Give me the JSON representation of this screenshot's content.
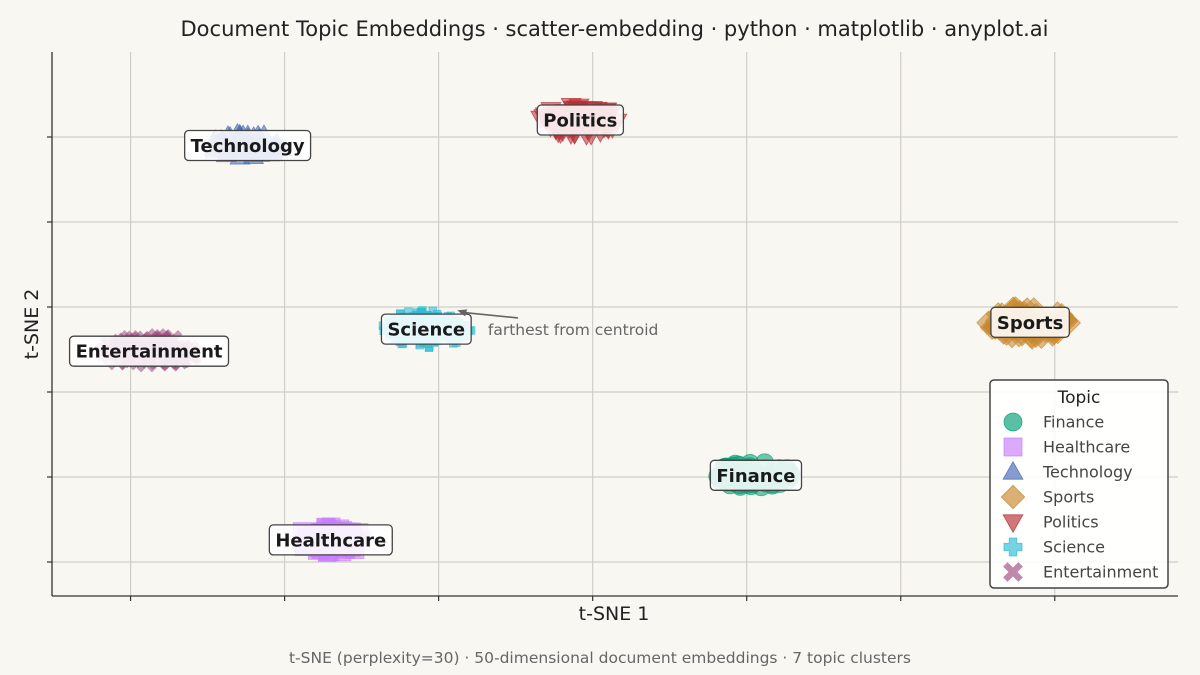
{
  "chart_data": {
    "type": "scatter",
    "title": "Document Topic Embeddings · scatter-embedding · python · matplotlib · anyplot.ai",
    "xlabel": "t-SNE 1",
    "ylabel": "t-SNE 2",
    "xlim": [
      -10.55,
      26
    ],
    "ylim": [
      -15.5,
      16.5
    ],
    "xticks": [
      -8,
      -3,
      2,
      7,
      12,
      17,
      22
    ],
    "yticks": [
      -13.5,
      -8.5,
      -3.5,
      1.5,
      6.5,
      11.5
    ],
    "tick_labels_shown": false,
    "grid": true,
    "legend": {
      "title": "Topic",
      "position": "lower-right",
      "entries": [
        "Finance",
        "Healthcare",
        "Technology",
        "Sports",
        "Politics",
        "Science",
        "Entertainment"
      ]
    },
    "series": [
      {
        "name": "Finance",
        "marker": "circle",
        "color": "#009E73",
        "center": [
          12.3,
          -8.4
        ],
        "spread": [
          1.3,
          0.8
        ]
      },
      {
        "name": "Healthcare",
        "marker": "square",
        "color": "#C77CFF",
        "center": [
          -1.5,
          -12.2
        ],
        "spread": [
          1.2,
          0.8
        ]
      },
      {
        "name": "Technology",
        "marker": "triangle-up",
        "color": "#4467B3",
        "center": [
          -4.2,
          11.0
        ],
        "spread": [
          1.3,
          0.7
        ]
      },
      {
        "name": "Sports",
        "marker": "diamond",
        "color": "#C8862B",
        "center": [
          21.2,
          0.6
        ],
        "spread": [
          1.4,
          0.9
        ]
      },
      {
        "name": "Politics",
        "marker": "triangle-down",
        "color": "#B82E35",
        "center": [
          6.6,
          12.5
        ],
        "spread": [
          1.3,
          0.9
        ]
      },
      {
        "name": "Science",
        "marker": "plus",
        "color": "#2BBCD3",
        "center": [
          1.6,
          0.2
        ],
        "spread": [
          1.3,
          0.8
        ]
      },
      {
        "name": "Entertainment",
        "marker": "x",
        "color": "#9E4A80",
        "center": [
          -7.4,
          -1.1
        ],
        "spread": [
          1.5,
          0.8
        ]
      }
    ],
    "annotation": {
      "text": "farthest from centroid",
      "point": [
        2.6,
        1.3
      ],
      "text_at": [
        3.6,
        0.15
      ]
    }
  },
  "caption": "t-SNE (perplexity=30)  ·  50-dimensional document embeddings  ·  7 topic clusters"
}
